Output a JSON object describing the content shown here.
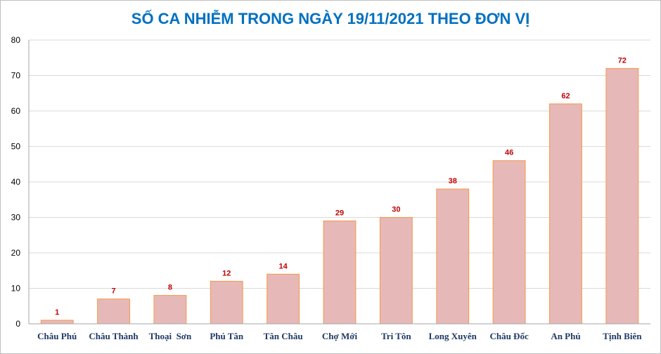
{
  "chart_data": {
    "type": "bar",
    "title": "SỐ CA NHIỄM TRONG NGÀY 19/11/2021 THEO ĐƠN VỊ",
    "categories": [
      "Châu Phú",
      "Châu Thành",
      "Thoại  Sơn",
      "Phú Tân",
      "Tân Châu",
      "Chợ Mới",
      "Tri Tôn",
      "Long Xuyên",
      "Châu Đốc",
      "An Phú",
      "Tịnh Biên"
    ],
    "values": [
      1,
      7,
      8,
      12,
      14,
      29,
      30,
      38,
      46,
      62,
      72
    ],
    "y_ticks": [
      "0",
      "10",
      "20",
      "30",
      "40",
      "50",
      "60",
      "70",
      "80"
    ],
    "ylim": [
      0,
      80
    ],
    "grid": true,
    "legend": "none",
    "colors": {
      "bar_fill": "#e6b9b8",
      "bar_stroke": "#f79646",
      "title": "#0070c0",
      "data_label": "#c00000",
      "category_label": "#1f3864"
    }
  }
}
